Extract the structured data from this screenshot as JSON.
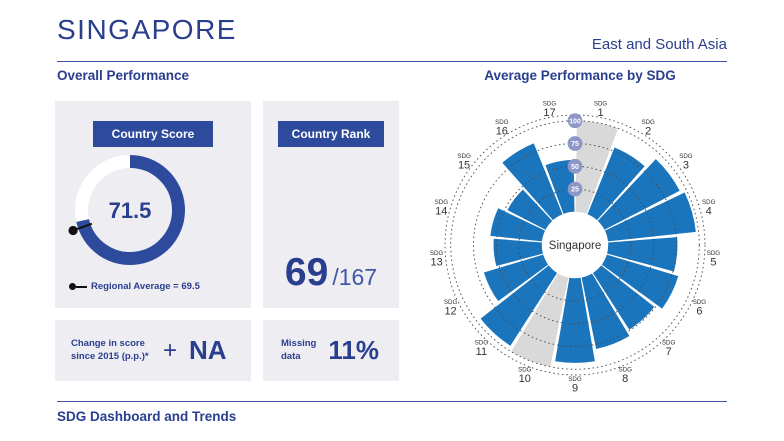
{
  "header": {
    "country": "SINGAPORE",
    "region": "East and South Asia"
  },
  "sections": {
    "overall_performance": "Overall Performance",
    "average_by_sdg": "Average Performance by SDG",
    "footer": "SDG Dashboard and Trends"
  },
  "score_panel": {
    "label": "Country Score",
    "score_display": "71.5",
    "score": 71.5,
    "max_score": 100,
    "regional_average": 69.5,
    "regional_legend": "Regional Average = 69.5"
  },
  "rank_panel": {
    "label": "Country Rank",
    "rank": "69",
    "total": "/167"
  },
  "change_panel": {
    "line1": "Change in score",
    "line2": "since 2015 (p.p.)*",
    "sign": "+",
    "value": "NA"
  },
  "missing_panel": {
    "line1": "Missing",
    "line2": "data",
    "value": "11%"
  },
  "chart_data": {
    "type": "radial-bar",
    "title": "Average Performance by SDG",
    "center_label": "Singapore",
    "categories": [
      "SDG 1",
      "SDG 2",
      "SDG 3",
      "SDG 4",
      "SDG 5",
      "SDG 6",
      "SDG 7",
      "SDG 8",
      "SDG 9",
      "SDG 10",
      "SDG 11",
      "SDG 12",
      "SDG 13",
      "SDG 14",
      "SDG 15",
      "SDG 16",
      "SDG 17"
    ],
    "values": [
      null,
      79,
      93,
      97,
      76,
      82,
      74,
      80,
      93,
      null,
      95,
      68,
      53,
      57,
      47,
      84,
      57
    ],
    "na_meaning": "missing data shown as full gray sector",
    "axis_ticks": [
      25,
      50,
      75,
      100
    ],
    "range": [
      0,
      100
    ],
    "legend_position": "none",
    "grid": "dotted-circles",
    "colors": {
      "bar": "#1b75bc",
      "na": "#d9d9d9",
      "ring": "#4a4a4a",
      "tick_badge": "#8d97c7",
      "label": "#333333"
    }
  },
  "colors": {
    "navy": "#2a3e8e",
    "box_navy": "#2d4a9d",
    "panel_bg": "#eeedf2",
    "rule": "#3d51a5",
    "gauge_blue": "#2d4a9d",
    "gauge_track": "#ffffff",
    "marker": "#111111"
  }
}
